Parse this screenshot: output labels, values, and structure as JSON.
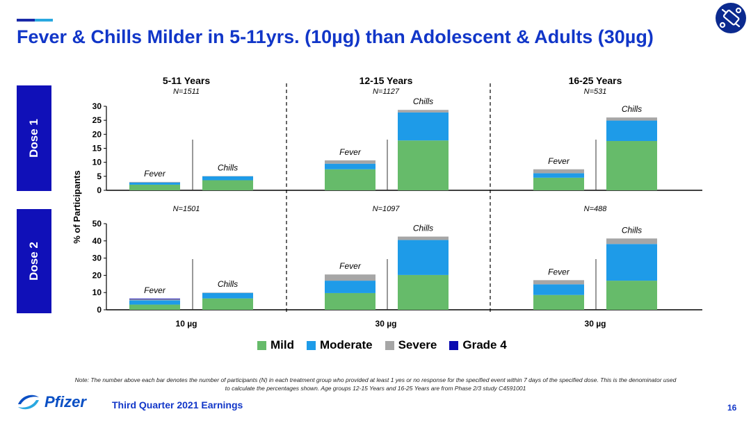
{
  "slide": {
    "title": "Fever & Chills Milder in 5-11yrs. (10µg) than Adolescent & Adults (30µg)",
    "page_number": "16",
    "footer_text": "Third Quarter 2021 Earnings",
    "logo_text": "Pfizer",
    "note_line1": "Note: The number above each bar denotes the number of participants (N) in each treatment group who provided at least 1 yes or no response for the specified event within 7 days of the specified dose. This is the denominator used",
    "note_line2": "to calculate the percentages shown. Age groups 12-15 Years and 16-25 Years are from Phase 2/3 study C4591001"
  },
  "dose_labels": [
    "Dose 1",
    "Dose 2"
  ],
  "legend": [
    {
      "label": "Mild",
      "color": "#66bb6a"
    },
    {
      "label": "Moderate",
      "color": "#1e9be8"
    },
    {
      "label": "Severe",
      "color": "#a6a6a6"
    },
    {
      "label": "Grade 4",
      "color": "#0a0ab0"
    }
  ],
  "chart_data": {
    "type": "bar",
    "stacked": true,
    "ylabel": "% of Participants",
    "groups": [
      {
        "title": "5-11 Years",
        "dose_label": "10 µg",
        "n": [
          "N=1511",
          "N=1501"
        ]
      },
      {
        "title": "12-15 Years",
        "dose_label": "30 µg",
        "n": [
          "N=1127",
          "N=1097"
        ]
      },
      {
        "title": "16-25 Years",
        "dose_label": "30 µg",
        "n": [
          "N=531",
          "N=488"
        ]
      }
    ],
    "panels": [
      {
        "dose": "Dose 1",
        "ylim": [
          0,
          30
        ],
        "yticks": [
          0,
          5,
          10,
          15,
          20,
          25,
          30
        ],
        "bars": [
          {
            "group": 0,
            "label": "Fever",
            "mild": 2.0,
            "moderate": 0.8,
            "severe": 0.2,
            "grade4": 0
          },
          {
            "group": 0,
            "label": "Chills",
            "mild": 3.6,
            "moderate": 1.4,
            "severe": 0.1,
            "grade4": 0
          },
          {
            "group": 1,
            "label": "Fever",
            "mild": 7.5,
            "moderate": 2.0,
            "severe": 1.2,
            "grade4": 0
          },
          {
            "group": 1,
            "label": "Chills",
            "mild": 17.8,
            "moderate": 10.0,
            "severe": 0.9,
            "grade4": 0
          },
          {
            "group": 2,
            "label": "Fever",
            "mild": 4.5,
            "moderate": 1.6,
            "severe": 1.4,
            "grade4": 0
          },
          {
            "group": 2,
            "label": "Chills",
            "mild": 17.6,
            "moderate": 7.3,
            "severe": 1.1,
            "grade4": 0
          }
        ]
      },
      {
        "dose": "Dose 2",
        "ylim": [
          0,
          50
        ],
        "yticks": [
          0,
          10,
          20,
          30,
          40,
          50
        ],
        "bars": [
          {
            "group": 0,
            "label": "Fever",
            "mild": 3.0,
            "moderate": 2.5,
            "severe": 0.6,
            "grade4": 0.4
          },
          {
            "group": 0,
            "label": "Chills",
            "mild": 6.6,
            "moderate": 3.2,
            "severe": 0.2,
            "grade4": 0
          },
          {
            "group": 1,
            "label": "Fever",
            "mild": 9.7,
            "moderate": 7.2,
            "severe": 3.6,
            "grade4": 0
          },
          {
            "group": 1,
            "label": "Chills",
            "mild": 20.2,
            "moderate": 20.3,
            "severe": 2.0,
            "grade4": 0
          },
          {
            "group": 2,
            "label": "Fever",
            "mild": 8.6,
            "moderate": 6.2,
            "severe": 2.4,
            "grade4": 0
          },
          {
            "group": 2,
            "label": "Chills",
            "mild": 16.9,
            "moderate": 21.3,
            "severe": 3.2,
            "grade4": 0
          }
        ]
      }
    ]
  }
}
